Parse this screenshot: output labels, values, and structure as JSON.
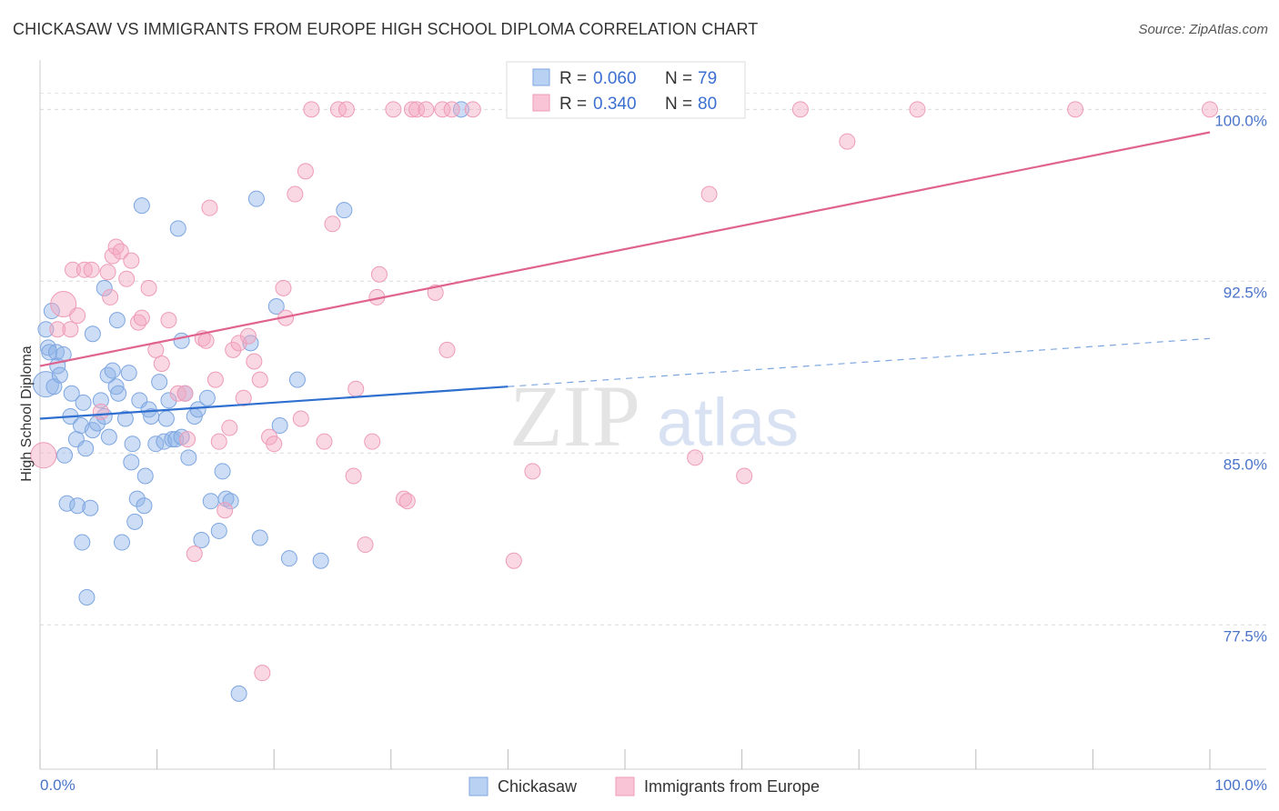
{
  "title": "CHICKASAW VS IMMIGRANTS FROM EUROPE HIGH SCHOOL DIPLOMA CORRELATION CHART",
  "source": "Source: ZipAtlas.com",
  "watermark": {
    "zip": "ZIP",
    "atlas": "atlas"
  },
  "chart_data": {
    "type": "scatter",
    "xlabel": "",
    "ylabel": "High School Diploma",
    "xlim": [
      0,
      100
    ],
    "ylim": [
      71.2,
      101.6
    ],
    "x_tick_labels": [
      "0.0%",
      "100.0%"
    ],
    "y_ticks": [
      77.5,
      85.0,
      92.5,
      100.0
    ],
    "y_tick_labels": [
      "77.5%",
      "85.0%",
      "92.5%",
      "100.0%"
    ],
    "grid": "horizontal dashed",
    "legend_position": "top-center",
    "series": [
      {
        "name": "Chickasaw",
        "color": "#8fb4e8",
        "line_color": "#2e6fcf",
        "R": "0.060",
        "N": "79",
        "trend": {
          "x0": 0,
          "y0": 86.5,
          "x1": 40,
          "y1": 87.9,
          "x_dash_end": 100,
          "y_dash_end": 90.0
        },
        "points": [
          [
            0.5,
            88.0
          ],
          [
            0.5,
            90.4
          ],
          [
            0.7,
            89.6
          ],
          [
            0.8,
            89.4
          ],
          [
            1.0,
            91.2
          ],
          [
            1.2,
            87.9
          ],
          [
            1.4,
            89.4
          ],
          [
            1.5,
            88.8
          ],
          [
            1.7,
            88.4
          ],
          [
            2.0,
            89.3
          ],
          [
            2.1,
            84.9
          ],
          [
            2.3,
            82.8
          ],
          [
            2.6,
            86.6
          ],
          [
            2.7,
            87.6
          ],
          [
            3.1,
            85.6
          ],
          [
            3.2,
            82.7
          ],
          [
            3.5,
            86.2
          ],
          [
            3.6,
            81.1
          ],
          [
            3.7,
            87.2
          ],
          [
            3.9,
            85.2
          ],
          [
            4.0,
            78.7
          ],
          [
            4.3,
            82.6
          ],
          [
            4.5,
            86.0
          ],
          [
            4.5,
            90.2
          ],
          [
            4.9,
            86.3
          ],
          [
            5.2,
            87.3
          ],
          [
            5.5,
            86.6
          ],
          [
            5.5,
            92.2
          ],
          [
            5.8,
            88.4
          ],
          [
            5.9,
            85.7
          ],
          [
            6.2,
            88.6
          ],
          [
            6.5,
            87.9
          ],
          [
            6.6,
            90.8
          ],
          [
            6.7,
            87.6
          ],
          [
            7.0,
            81.1
          ],
          [
            7.3,
            86.5
          ],
          [
            7.6,
            88.5
          ],
          [
            7.8,
            84.6
          ],
          [
            7.9,
            85.4
          ],
          [
            8.1,
            82.0
          ],
          [
            8.3,
            83.0
          ],
          [
            8.5,
            87.3
          ],
          [
            8.7,
            95.8
          ],
          [
            8.9,
            82.7
          ],
          [
            9.0,
            84.0
          ],
          [
            9.3,
            86.9
          ],
          [
            9.5,
            86.6
          ],
          [
            9.9,
            85.4
          ],
          [
            10.2,
            88.1
          ],
          [
            10.6,
            85.5
          ],
          [
            10.8,
            86.5
          ],
          [
            11.0,
            87.3
          ],
          [
            11.3,
            85.6
          ],
          [
            11.6,
            85.6
          ],
          [
            11.8,
            94.8
          ],
          [
            12.1,
            85.7
          ],
          [
            12.1,
            89.9
          ],
          [
            12.4,
            87.6
          ],
          [
            12.7,
            84.8
          ],
          [
            13.2,
            86.6
          ],
          [
            13.5,
            86.9
          ],
          [
            13.8,
            81.2
          ],
          [
            14.3,
            87.4
          ],
          [
            14.6,
            82.9
          ],
          [
            15.3,
            81.6
          ],
          [
            15.6,
            84.2
          ],
          [
            15.9,
            83.0
          ],
          [
            16.3,
            82.9
          ],
          [
            17.0,
            74.5
          ],
          [
            18.0,
            89.8
          ],
          [
            18.5,
            96.1
          ],
          [
            18.8,
            81.3
          ],
          [
            20.2,
            91.4
          ],
          [
            20.5,
            86.2
          ],
          [
            21.3,
            80.4
          ],
          [
            22.0,
            88.2
          ],
          [
            24.0,
            80.3
          ],
          [
            26.0,
            95.6
          ],
          [
            36.0,
            100.0
          ]
        ]
      },
      {
        "name": "Immigrants from Europe",
        "color": "#f4a8c2",
        "line_color": "#e0638f",
        "R": "0.340",
        "N": "80",
        "trend": {
          "x0": 0,
          "y0": 88.8,
          "x1": 100,
          "y1": 99.0
        },
        "points": [
          [
            0.3,
            84.9
          ],
          [
            1.5,
            90.4
          ],
          [
            2.0,
            91.5
          ],
          [
            2.6,
            90.4
          ],
          [
            2.8,
            93.0
          ],
          [
            3.2,
            91.0
          ],
          [
            3.8,
            93.0
          ],
          [
            4.4,
            93.0
          ],
          [
            5.2,
            86.8
          ],
          [
            5.8,
            92.9
          ],
          [
            6.0,
            91.8
          ],
          [
            6.2,
            93.6
          ],
          [
            6.5,
            94.0
          ],
          [
            6.9,
            93.8
          ],
          [
            7.4,
            92.6
          ],
          [
            7.8,
            93.4
          ],
          [
            8.4,
            90.7
          ],
          [
            8.7,
            90.9
          ],
          [
            9.3,
            92.2
          ],
          [
            9.9,
            89.5
          ],
          [
            10.4,
            88.9
          ],
          [
            11.0,
            90.8
          ],
          [
            11.8,
            87.6
          ],
          [
            12.4,
            87.6
          ],
          [
            12.6,
            85.6
          ],
          [
            13.2,
            80.6
          ],
          [
            13.9,
            90.0
          ],
          [
            14.2,
            89.9
          ],
          [
            14.5,
            95.7
          ],
          [
            15.0,
            88.2
          ],
          [
            15.3,
            85.5
          ],
          [
            15.8,
            82.5
          ],
          [
            16.2,
            86.1
          ],
          [
            16.5,
            89.5
          ],
          [
            17.0,
            89.8
          ],
          [
            17.4,
            87.4
          ],
          [
            17.8,
            90.1
          ],
          [
            18.3,
            89.0
          ],
          [
            18.8,
            88.2
          ],
          [
            19.0,
            75.4
          ],
          [
            19.6,
            85.7
          ],
          [
            20.0,
            85.4
          ],
          [
            20.8,
            92.2
          ],
          [
            21.0,
            90.9
          ],
          [
            21.8,
            96.3
          ],
          [
            22.3,
            86.5
          ],
          [
            22.7,
            97.3
          ],
          [
            23.2,
            100.0
          ],
          [
            24.3,
            85.5
          ],
          [
            25.0,
            95.0
          ],
          [
            25.5,
            100.0
          ],
          [
            26.2,
            100.0
          ],
          [
            26.8,
            84.0
          ],
          [
            27.0,
            87.8
          ],
          [
            27.8,
            81.0
          ],
          [
            28.4,
            85.5
          ],
          [
            28.8,
            91.8
          ],
          [
            29.0,
            92.8
          ],
          [
            30.2,
            100.0
          ],
          [
            31.1,
            83.0
          ],
          [
            31.4,
            82.9
          ],
          [
            31.8,
            100.0
          ],
          [
            32.2,
            100.0
          ],
          [
            33.0,
            100.0
          ],
          [
            33.8,
            92.0
          ],
          [
            34.4,
            100.0
          ],
          [
            34.8,
            89.5
          ],
          [
            35.2,
            100.0
          ],
          [
            37.0,
            100.0
          ],
          [
            40.5,
            80.3
          ],
          [
            42.1,
            84.2
          ],
          [
            45.2,
            100.0
          ],
          [
            56.0,
            84.8
          ],
          [
            57.2,
            96.3
          ],
          [
            60.2,
            84.0
          ],
          [
            65.0,
            100.0
          ],
          [
            69.0,
            98.6
          ],
          [
            75.0,
            100.0
          ],
          [
            88.5,
            100.0
          ],
          [
            100.0,
            100.0
          ]
        ]
      }
    ]
  }
}
